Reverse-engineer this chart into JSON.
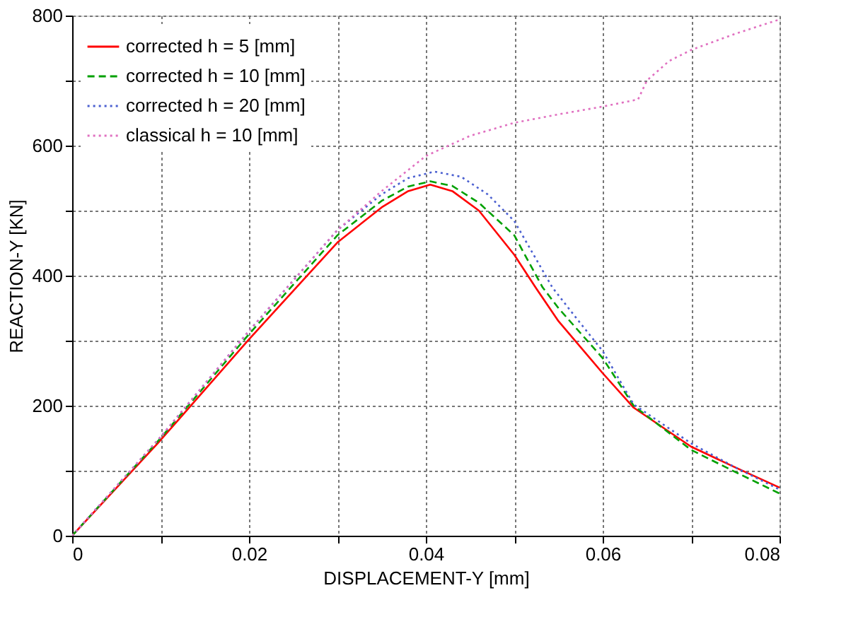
{
  "chart_data": {
    "type": "line",
    "xlabel": "DISPLACEMENT-Y [mm]",
    "ylabel": "REACTION-Y [KN]",
    "xlim": [
      0,
      0.08
    ],
    "ylim": [
      0,
      800
    ],
    "xticks": [
      0,
      {
        "value": 0.01,
        "label": null
      },
      0.02,
      {
        "value": 0.03,
        "label": null
      },
      0.04,
      {
        "value": 0.05,
        "label": null
      },
      0.06,
      {
        "value": 0.07,
        "label": null
      },
      0.08
    ],
    "yticks": [
      0,
      {
        "value": 100,
        "label": null
      },
      200,
      {
        "value": 300,
        "label": null
      },
      400,
      {
        "value": 500,
        "label": null
      },
      600,
      {
        "value": 700,
        "label": null
      },
      800
    ],
    "grid": true,
    "legend": "top left",
    "marker": "none",
    "series": [
      {
        "name": "corrected h =  5 [mm]",
        "color": "#ff0000",
        "line_style": "solid",
        "x": [
          0,
          0.01,
          0.02,
          0.03,
          0.035,
          0.038,
          0.0405,
          0.043,
          0.046,
          0.05,
          0.0524,
          0.055,
          0.06,
          0.0635,
          0.07,
          0.075,
          0.08
        ],
        "values": [
          0,
          147,
          302,
          451,
          505,
          530,
          540,
          530,
          500,
          432,
          382,
          330,
          250,
          197,
          137,
          105,
          74
        ]
      },
      {
        "name": "corrected h = 10 [mm]",
        "color": "#00a000",
        "line_style": "dashed",
        "x": [
          0,
          0.01,
          0.02,
          0.03,
          0.035,
          0.038,
          0.0405,
          0.043,
          0.046,
          0.05,
          0.0532,
          0.055,
          0.06,
          0.0635,
          0.07,
          0.075,
          0.08
        ],
        "values": [
          0,
          150,
          310,
          462,
          515,
          537,
          545,
          538,
          512,
          462,
          382,
          350,
          273,
          200,
          132,
          98,
          65
        ]
      },
      {
        "name": "corrected h = 20 [mm]",
        "color": "#4a5fd0",
        "line_style": "dotted",
        "x": [
          0,
          0.01,
          0.02,
          0.03,
          0.035,
          0.038,
          0.041,
          0.044,
          0.047,
          0.05,
          0.0543,
          0.057,
          0.06,
          0.0635,
          0.07,
          0.075,
          0.08
        ],
        "values": [
          0,
          152,
          315,
          470,
          525,
          550,
          560,
          552,
          525,
          484,
          382,
          335,
          284,
          202,
          142,
          105,
          71
        ]
      },
      {
        "name": "classical h = 10 [mm]",
        "color": "#e070c0",
        "line_style": "dotted",
        "x": [
          0,
          0.01,
          0.02,
          0.03,
          0.035,
          0.04,
          0.045,
          0.05,
          0.055,
          0.06,
          0.064,
          0.065,
          0.0675,
          0.07,
          0.075,
          0.08
        ],
        "values": [
          0,
          152,
          315,
          470,
          530,
          584,
          615,
          635,
          648,
          660,
          671,
          700,
          730,
          747,
          772,
          794
        ]
      }
    ]
  }
}
